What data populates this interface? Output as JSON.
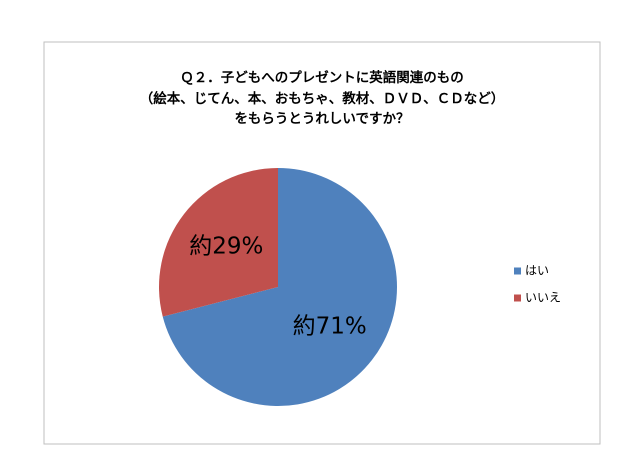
{
  "chart_data": {
    "type": "pie",
    "title": [
      "Ｑ２．子どもへのプレゼントに英語関連のもの",
      "（絵本、じてん、本、おもちゃ、教材、ＤＶＤ、ＣＤなど）",
      "をもらうとうれしいですか？"
    ],
    "categories": [
      "はい",
      "いいえ"
    ],
    "values": [
      71,
      29
    ],
    "value_labels": [
      "約71%",
      "約29%"
    ],
    "colors": [
      "#4f81bd",
      "#c0504d"
    ],
    "legend": "right"
  }
}
